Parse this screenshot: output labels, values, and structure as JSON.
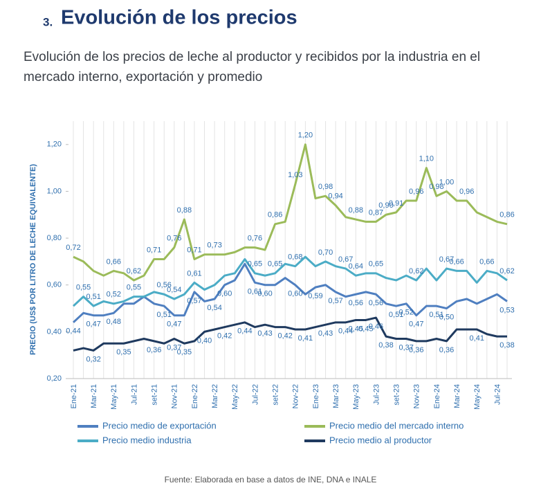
{
  "chart_data": {
    "type": "line",
    "section_number": "3.",
    "title": "Evolución de los precios",
    "subtitle": "Evolución de los precios de leche al productor y recibidos por la industria en el mercado interno, exportación y promedio",
    "y_label": "PRECIO (US$ POR LITRO DE LECHE EQUIVALENTE)",
    "source": "Fuente: Elaborada en base a datos de INE, DNA e INALE",
    "categories": [
      "Ene-21",
      null,
      "Mar-21",
      null,
      "May-21",
      null,
      "Jul-21",
      null,
      "set-21",
      null,
      "Nov-21",
      null,
      "Ene-22",
      null,
      "Mar-22",
      null,
      "May-22",
      null,
      "Jul-22",
      null,
      "set-22",
      null,
      "Nov-22",
      null,
      "Ene-23",
      null,
      "Mar-23",
      null,
      "May-23",
      null,
      "Jul-23",
      null,
      "set-23",
      null,
      "Nov-23",
      null,
      "Ene-24",
      null,
      "Mar-24",
      null,
      "May-24",
      null,
      "Jul-24",
      null
    ],
    "ylim": [
      0.2,
      1.3
    ],
    "yticks": [
      {
        "value": 0.2,
        "label": "0,20"
      },
      {
        "value": 0.4,
        "label": "0,40"
      },
      {
        "value": 0.6,
        "label": "0,60"
      },
      {
        "value": 0.8,
        "label": "0,80"
      },
      {
        "value": 1.0,
        "label": "1,00"
      },
      {
        "value": 1.2,
        "label": "1,20"
      }
    ],
    "grid": true,
    "series": [
      {
        "name": "Precio medio de exportación",
        "color": "#4f7fc0",
        "label_side": "below",
        "values": [
          0.44,
          0.48,
          0.47,
          0.47,
          0.48,
          0.52,
          0.52,
          0.55,
          0.52,
          0.51,
          0.47,
          0.47,
          0.57,
          0.53,
          0.54,
          0.6,
          0.62,
          0.69,
          0.61,
          0.6,
          0.6,
          0.63,
          0.6,
          0.56,
          0.59,
          0.6,
          0.57,
          0.55,
          0.56,
          0.57,
          0.56,
          0.52,
          0.51,
          0.52,
          0.47,
          0.51,
          0.51,
          0.5,
          0.53,
          0.54,
          0.52,
          0.54,
          0.56,
          0.53
        ],
        "value_labels": [
          "0,44",
          null,
          "0,47",
          null,
          "0,48",
          null,
          null,
          null,
          null,
          "0,51",
          "0,47",
          null,
          "0,57",
          null,
          "0,54",
          "0,60",
          null,
          null,
          "0,61",
          "0,60",
          null,
          null,
          "0,60",
          null,
          "0,59",
          null,
          "0,57",
          null,
          "0,56",
          null,
          "0,56",
          null,
          "0,51",
          "0,52",
          "0,47",
          null,
          "0,51",
          "0,50",
          null,
          null,
          null,
          null,
          null,
          "0,53"
        ]
      },
      {
        "name": "Precio medio del mercado interno",
        "color": "#9bbb59",
        "label_side": "above",
        "values": [
          0.72,
          0.7,
          0.66,
          0.64,
          0.66,
          0.65,
          0.62,
          0.64,
          0.71,
          0.71,
          0.76,
          0.88,
          0.71,
          0.73,
          0.73,
          0.73,
          0.74,
          0.76,
          0.76,
          0.75,
          0.86,
          0.87,
          1.03,
          1.2,
          0.97,
          0.98,
          0.94,
          0.89,
          0.88,
          0.87,
          0.87,
          0.9,
          0.91,
          0.96,
          0.96,
          1.1,
          0.98,
          1.0,
          0.96,
          0.96,
          0.91,
          0.89,
          0.87,
          0.86
        ],
        "value_labels": [
          "0,72",
          null,
          null,
          null,
          "0,66",
          null,
          "0,62",
          null,
          "0,71",
          null,
          "0,76",
          "0,88",
          "0,71",
          null,
          "0,73",
          null,
          null,
          null,
          "0,76",
          null,
          "0,86",
          null,
          "1,03",
          "1,20",
          null,
          "0,98",
          "0,94",
          null,
          "0,88",
          null,
          "0,87",
          "0,90",
          "0,91",
          null,
          "0,96",
          "1,10",
          "0,98",
          "1,00",
          null,
          "0,96",
          null,
          null,
          null,
          "0,86"
        ]
      },
      {
        "name": "Precio medio industria",
        "color": "#4bacc6",
        "label_side": "above",
        "values": [
          0.51,
          0.55,
          0.51,
          0.53,
          0.52,
          0.53,
          0.55,
          0.55,
          0.57,
          0.56,
          0.54,
          0.56,
          0.61,
          0.58,
          0.6,
          0.64,
          0.65,
          0.71,
          0.65,
          0.64,
          0.65,
          0.69,
          0.68,
          0.72,
          0.68,
          0.7,
          0.68,
          0.67,
          0.64,
          0.65,
          0.65,
          0.63,
          0.62,
          0.64,
          0.62,
          0.67,
          0.62,
          0.67,
          0.66,
          0.66,
          0.61,
          0.66,
          0.65,
          0.62
        ],
        "value_labels": [
          null,
          "0,55",
          "0,51",
          null,
          "0,52",
          null,
          "0,55",
          null,
          null,
          "0,56",
          "0,54",
          null,
          "0,61",
          null,
          null,
          null,
          null,
          null,
          "0,65",
          null,
          "0,65",
          null,
          "0,68",
          null,
          null,
          "0,70",
          null,
          "0,67",
          "0,64",
          null,
          "0,65",
          null,
          null,
          null,
          "0,62",
          null,
          null,
          "0,67",
          "0,66",
          null,
          null,
          "0,66",
          null,
          "0,62"
        ]
      },
      {
        "name": "Precio medio al productor",
        "color": "#1f3a5f",
        "label_side": "below",
        "values": [
          0.32,
          0.33,
          0.32,
          0.35,
          0.35,
          0.35,
          0.36,
          0.37,
          0.36,
          0.35,
          0.37,
          0.35,
          0.36,
          0.4,
          0.41,
          0.42,
          0.43,
          0.44,
          0.42,
          0.43,
          0.42,
          0.42,
          0.41,
          0.41,
          0.42,
          0.43,
          0.44,
          0.44,
          0.45,
          0.45,
          0.46,
          0.38,
          0.37,
          0.37,
          0.36,
          0.36,
          0.37,
          0.36,
          0.41,
          0.41,
          0.41,
          0.39,
          0.38,
          0.38
        ],
        "value_labels": [
          null,
          null,
          "0,32",
          null,
          null,
          "0,35",
          null,
          null,
          "0,36",
          null,
          "0,37",
          "0,35",
          null,
          "0,40",
          null,
          "0,42",
          null,
          "0,44",
          null,
          "0,43",
          null,
          "0,42",
          null,
          "0,41",
          null,
          "0,43",
          null,
          "0,44",
          "0,45",
          "0,45",
          "0,46",
          "0,38",
          null,
          "0,37",
          "0,36",
          null,
          null,
          "0,36",
          null,
          null,
          "0,41",
          null,
          null,
          "0,38"
        ]
      }
    ]
  }
}
